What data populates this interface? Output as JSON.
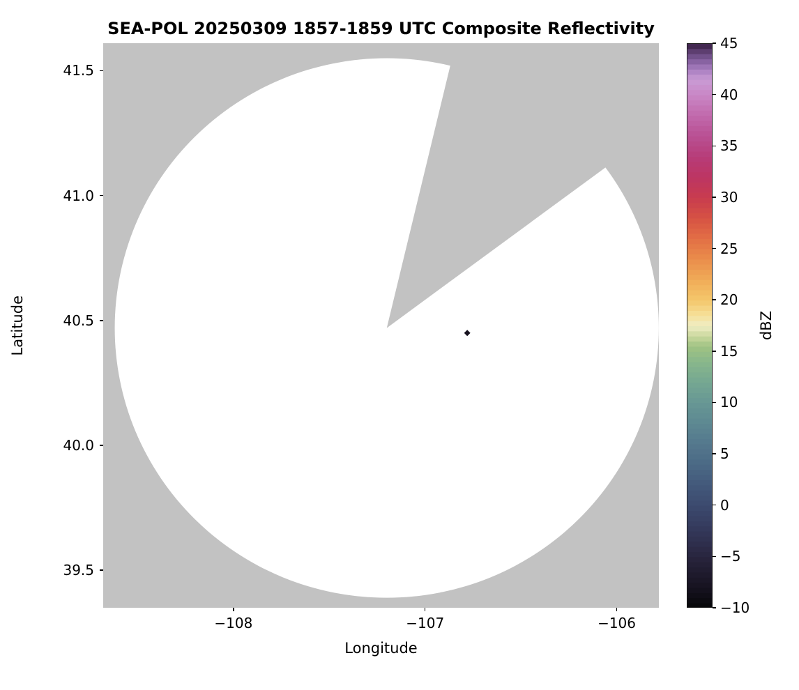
{
  "chart_data": {
    "type": "heatmap",
    "title": "SEA-POL 20250309 1857-1859 UTC Composite Reflectivity",
    "xlabel": "Longitude",
    "ylabel": "Latitude",
    "xlim": [
      -108.68,
      -105.78
    ],
    "ylim": [
      39.35,
      41.61
    ],
    "grid": false,
    "legend": "none",
    "x_ticks": [
      {
        "value": -108,
        "label": "−108"
      },
      {
        "value": -107,
        "label": "−107"
      },
      {
        "value": -106,
        "label": "−106"
      }
    ],
    "y_ticks": [
      {
        "value": 39.5,
        "label": "39.5"
      },
      {
        "value": 40.0,
        "label": "40.0"
      },
      {
        "value": 40.5,
        "label": "40.5"
      },
      {
        "value": 41.0,
        "label": "41.0"
      },
      {
        "value": 41.5,
        "label": "41.5"
      }
    ],
    "colorbar": {
      "label": "dBZ",
      "position": "right",
      "range": [
        -10,
        45
      ],
      "band_step": 0.5,
      "ticks": [
        {
          "value": 45,
          "label": "45"
        },
        {
          "value": 40,
          "label": "40"
        },
        {
          "value": 35,
          "label": "35"
        },
        {
          "value": 30,
          "label": "30"
        },
        {
          "value": 25,
          "label": "25"
        },
        {
          "value": 20,
          "label": "20"
        },
        {
          "value": 15,
          "label": "15"
        },
        {
          "value": 10,
          "label": "10"
        },
        {
          "value": 5,
          "label": "5"
        },
        {
          "value": 0,
          "label": "0"
        },
        {
          "value": -5,
          "label": "−5"
        },
        {
          "value": -10,
          "label": "−10"
        }
      ]
    },
    "colormap_name": "spectral-reflectivity",
    "colormap_stops": [
      {
        "v": -10,
        "c": "#060608"
      },
      {
        "v": -8,
        "c": "#161220"
      },
      {
        "v": -6,
        "c": "#231e33"
      },
      {
        "v": -4,
        "c": "#2d2c49"
      },
      {
        "v": -2,
        "c": "#353b5e"
      },
      {
        "v": 0,
        "c": "#3c4a6e"
      },
      {
        "v": 2,
        "c": "#43597b"
      },
      {
        "v": 4,
        "c": "#4b6985"
      },
      {
        "v": 6,
        "c": "#54788d"
      },
      {
        "v": 8,
        "c": "#5d8892"
      },
      {
        "v": 10,
        "c": "#679794"
      },
      {
        "v": 12,
        "c": "#75a792"
      },
      {
        "v": 14,
        "c": "#88b78b"
      },
      {
        "v": 15.5,
        "c": "#a0c383"
      },
      {
        "v": 16.5,
        "c": "#c9d89d"
      },
      {
        "v": 17.5,
        "c": "#efedc4"
      },
      {
        "v": 18.5,
        "c": "#f6e19b"
      },
      {
        "v": 20,
        "c": "#f4c76b"
      },
      {
        "v": 22,
        "c": "#f0ab57"
      },
      {
        "v": 24,
        "c": "#ea8d4b"
      },
      {
        "v": 26,
        "c": "#e26f45"
      },
      {
        "v": 28,
        "c": "#d65244"
      },
      {
        "v": 30,
        "c": "#c83c4e"
      },
      {
        "v": 32,
        "c": "#bd3562"
      },
      {
        "v": 34,
        "c": "#b73c79"
      },
      {
        "v": 36,
        "c": "#b95093"
      },
      {
        "v": 38,
        "c": "#c169ac"
      },
      {
        "v": 40,
        "c": "#c987c5"
      },
      {
        "v": 41.5,
        "c": "#c99bd4"
      },
      {
        "v": 42.5,
        "c": "#a87ec0"
      },
      {
        "v": 43.5,
        "c": "#7d5a98"
      },
      {
        "v": 44.5,
        "c": "#523463"
      },
      {
        "v": 45,
        "c": "#31193c"
      }
    ],
    "nodata_color": "#c2c2c2",
    "coverage_color": "#ffffff",
    "background_color": "#ffffff",
    "radar": {
      "center": {
        "lon": -107.2,
        "lat": 40.47
      },
      "range_deg_lat": 1.08
    },
    "missing_sector": {
      "azimuth_start_deg": 13.5,
      "azimuth_end_deg": 53.5
    },
    "echoes": [
      {
        "lon": -106.78,
        "lat": 40.45,
        "color": "#17121f"
      }
    ]
  }
}
